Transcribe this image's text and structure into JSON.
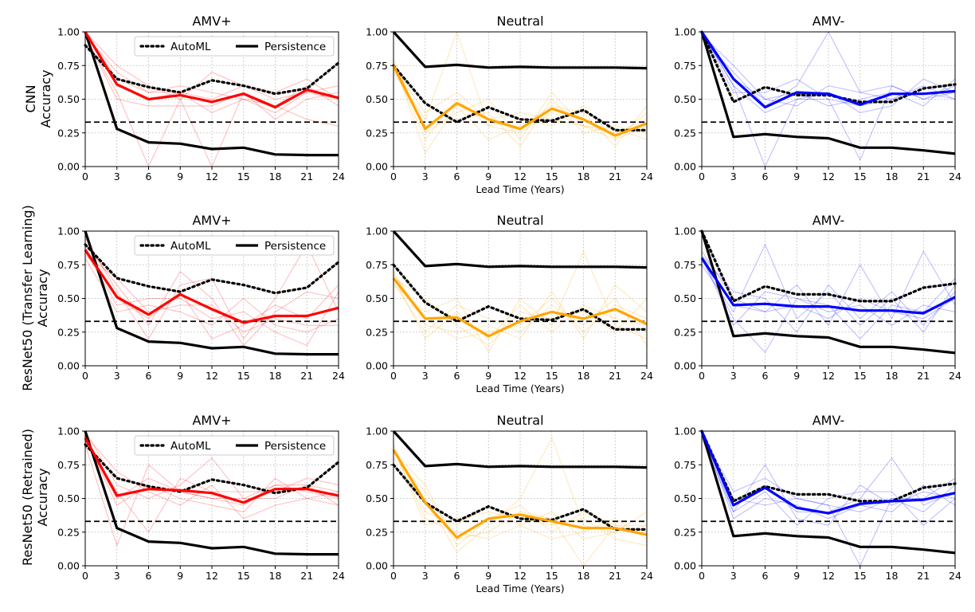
{
  "colors": {
    "amv_plus": "#ff0000",
    "neutral": "#ffa500",
    "amv_minus": "#0000ff",
    "persistence": "#000000",
    "automl": "#000000",
    "baseline": "#000000"
  },
  "legend": {
    "automl": "AutoML",
    "persistence": "Persistence"
  },
  "row_labels": [
    [
      "CNN",
      "Accuracy"
    ],
    [
      "ResNet50 (Transfer Learning)",
      "Accuracy"
    ],
    [
      "ResNet50 (Retrained)",
      "Accuracy"
    ]
  ],
  "xlabel": "Lead Time (Years)",
  "chart_data": {
    "type": "line",
    "x": [
      0,
      3,
      6,
      9,
      12,
      15,
      18,
      21,
      24
    ],
    "xticks": [
      "0",
      "3",
      "6",
      "9",
      "12",
      "15",
      "18",
      "21",
      "24"
    ],
    "yticks": [
      "0.00",
      "0.25",
      "0.50",
      "0.75",
      "1.00"
    ],
    "ylim": [
      0,
      1
    ],
    "xlim": [
      0,
      24
    ],
    "baseline": 0.33,
    "columns": [
      "AMV+",
      "Neutral",
      "AMV-"
    ],
    "persistence": {
      "AMV+": [
        1.0,
        0.28,
        0.18,
        0.17,
        0.13,
        0.14,
        0.09,
        0.085,
        0.085
      ],
      "Neutral": [
        1.0,
        0.74,
        0.755,
        0.735,
        0.74,
        0.735,
        0.735,
        0.735,
        0.73
      ],
      "AMV-": [
        1.0,
        0.22,
        0.24,
        0.22,
        0.21,
        0.14,
        0.14,
        0.12,
        0.095
      ]
    },
    "automl": {
      "AMV+": [
        0.9,
        0.65,
        0.59,
        0.55,
        0.64,
        0.6,
        0.54,
        0.58,
        0.77
      ],
      "Neutral": [
        0.75,
        0.47,
        0.33,
        0.44,
        0.35,
        0.34,
        0.42,
        0.27,
        0.27
      ],
      "AMV-": [
        1.0,
        0.48,
        0.59,
        0.53,
        0.53,
        0.48,
        0.48,
        0.58,
        0.61
      ]
    },
    "panels": [
      {
        "row": "CNN",
        "column": "AMV+",
        "mean": [
          1.0,
          0.61,
          0.5,
          0.53,
          0.48,
          0.54,
          0.44,
          0.57,
          0.51
        ],
        "members": [
          [
            0.98,
            0.7,
            0.55,
            0.55,
            0.5,
            0.6,
            0.5,
            0.55,
            0.5
          ],
          [
            0.96,
            0.55,
            0.0,
            0.5,
            0.0,
            0.55,
            0.45,
            0.6,
            0.45
          ],
          [
            1.0,
            0.65,
            0.55,
            0.6,
            0.55,
            0.5,
            0.4,
            0.55,
            0.6
          ],
          [
            0.97,
            0.5,
            0.45,
            0.45,
            0.45,
            0.55,
            0.35,
            0.5,
            0.55
          ],
          [
            1.0,
            0.75,
            0.6,
            0.5,
            0.7,
            0.6,
            0.55,
            0.65,
            0.5
          ],
          [
            0.99,
            0.6,
            0.5,
            0.55,
            0.4,
            0.5,
            0.45,
            0.35,
            0.3
          ]
        ]
      },
      {
        "row": "CNN",
        "column": "Neutral",
        "mean": [
          0.75,
          0.28,
          0.47,
          0.35,
          0.28,
          0.43,
          0.35,
          0.23,
          0.32
        ],
        "members": [
          [
            0.7,
            0.35,
            1.0,
            0.3,
            0.25,
            0.4,
            0.3,
            0.2,
            0.3
          ],
          [
            0.8,
            0.25,
            0.4,
            0.5,
            0.2,
            0.55,
            0.3,
            0.25,
            0.35
          ],
          [
            0.75,
            0.2,
            0.5,
            0.3,
            0.35,
            0.3,
            0.45,
            0.2,
            0.4
          ],
          [
            0.72,
            0.3,
            0.35,
            0.4,
            0.15,
            0.5,
            0.25,
            0.3,
            0.25
          ],
          [
            0.78,
            0.1,
            0.45,
            0.2,
            0.3,
            0.45,
            0.4,
            0.15,
            0.45
          ],
          [
            0.74,
            0.4,
            0.55,
            0.35,
            0.4,
            0.35,
            0.3,
            0.28,
            0.2
          ]
        ]
      },
      {
        "row": "CNN",
        "column": "AMV-",
        "mean": [
          1.0,
          0.65,
          0.44,
          0.55,
          0.54,
          0.46,
          0.54,
          0.54,
          0.56
        ],
        "members": [
          [
            0.95,
            0.7,
            0.45,
            0.6,
            1.0,
            0.55,
            0.5,
            0.6,
            0.5
          ],
          [
            1.0,
            0.6,
            0.0,
            0.5,
            0.5,
            0.05,
            0.6,
            0.5,
            0.55
          ],
          [
            0.97,
            0.65,
            0.5,
            0.55,
            0.45,
            0.5,
            0.55,
            0.45,
            0.65
          ],
          [
            1.0,
            0.55,
            0.55,
            0.65,
            0.5,
            0.45,
            0.5,
            0.55,
            0.5
          ],
          [
            0.98,
            0.75,
            0.5,
            0.45,
            0.6,
            0.55,
            0.6,
            0.5,
            0.6
          ],
          [
            1.0,
            0.6,
            0.4,
            0.5,
            0.55,
            0.4,
            0.45,
            0.65,
            0.55
          ]
        ]
      },
      {
        "row": "ResNet50 (Transfer Learning)",
        "column": "AMV+",
        "mean": [
          0.86,
          0.51,
          0.38,
          0.53,
          0.42,
          0.32,
          0.37,
          0.37,
          0.43
        ],
        "members": [
          [
            0.9,
            0.6,
            0.3,
            0.7,
            0.5,
            0.15,
            0.4,
            0.55,
            0.5
          ],
          [
            0.8,
            0.4,
            0.45,
            0.4,
            0.3,
            0.5,
            0.3,
            0.25,
            0.35
          ],
          [
            0.95,
            0.55,
            0.2,
            0.6,
            0.65,
            0.2,
            0.5,
            0.9,
            0.4
          ],
          [
            0.85,
            0.45,
            0.5,
            0.5,
            0.35,
            0.4,
            0.25,
            0.15,
            0.55
          ],
          [
            0.88,
            0.5,
            0.35,
            0.55,
            0.2,
            0.3,
            0.45,
            0.35,
            0.6
          ],
          [
            0.82,
            0.65,
            0.4,
            0.45,
            0.45,
            0.25,
            0.35,
            0.3,
            0.3
          ]
        ]
      },
      {
        "row": "ResNet50 (Transfer Learning)",
        "column": "Neutral",
        "mean": [
          0.65,
          0.35,
          0.36,
          0.22,
          0.33,
          0.4,
          0.35,
          0.42,
          0.31
        ],
        "members": [
          [
            0.6,
            0.4,
            0.5,
            0.1,
            0.5,
            0.3,
            0.85,
            0.3,
            0.2
          ],
          [
            0.7,
            0.3,
            0.25,
            0.3,
            0.2,
            0.55,
            0.2,
            0.6,
            0.4
          ],
          [
            0.65,
            0.5,
            0.3,
            0.15,
            0.4,
            0.35,
            0.4,
            0.25,
            0.5
          ],
          [
            0.62,
            0.25,
            0.45,
            0.35,
            0.25,
            0.45,
            0.3,
            0.5,
            0.15
          ],
          [
            0.68,
            0.35,
            0.2,
            0.25,
            0.3,
            0.5,
            0.25,
            0.45,
            0.35
          ],
          [
            0.66,
            0.2,
            0.4,
            0.2,
            0.45,
            0.25,
            0.45,
            0.35,
            0.3
          ]
        ]
      },
      {
        "row": "ResNet50 (Transfer Learning)",
        "column": "AMV-",
        "mean": [
          0.8,
          0.45,
          0.46,
          0.44,
          0.44,
          0.41,
          0.41,
          0.39,
          0.51
        ],
        "members": [
          [
            0.85,
            0.5,
            0.4,
            0.6,
            0.3,
            0.75,
            0.35,
            0.85,
            0.45
          ],
          [
            0.75,
            0.4,
            0.9,
            0.35,
            0.55,
            0.3,
            0.5,
            0.25,
            0.6
          ],
          [
            0.8,
            0.35,
            0.1,
            0.5,
            0.4,
            0.45,
            0.3,
            0.45,
            0.4
          ],
          [
            0.82,
            0.55,
            0.5,
            0.25,
            0.6,
            0.35,
            0.55,
            0.3,
            0.55
          ],
          [
            0.78,
            0.45,
            0.4,
            0.45,
            0.35,
            0.5,
            0.4,
            0.35,
            0.5
          ],
          [
            0.8,
            0.3,
            0.55,
            0.5,
            0.45,
            0.2,
            0.45,
            0.4,
            0.65
          ]
        ]
      },
      {
        "row": "ResNet50 (Retrained)",
        "column": "AMV+",
        "mean": [
          0.95,
          0.52,
          0.57,
          0.56,
          0.54,
          0.47,
          0.57,
          0.57,
          0.52
        ],
        "members": [
          [
            0.9,
            0.15,
            0.75,
            0.55,
            0.5,
            0.45,
            0.6,
            0.55,
            0.5
          ],
          [
            1.0,
            0.6,
            0.5,
            0.6,
            0.8,
            0.5,
            0.5,
            0.6,
            0.45
          ],
          [
            0.95,
            0.45,
            0.6,
            0.5,
            0.45,
            0.4,
            0.65,
            0.5,
            0.55
          ],
          [
            0.92,
            0.55,
            0.25,
            0.65,
            0.55,
            0.55,
            0.55,
            0.65,
            0.6
          ],
          [
            0.97,
            0.7,
            0.55,
            0.45,
            0.6,
            0.35,
            0.45,
            0.5,
            0.45
          ],
          [
            0.93,
            0.5,
            0.65,
            0.55,
            0.5,
            0.5,
            0.6,
            0.6,
            0.55
          ]
        ]
      },
      {
        "row": "ResNet50 (Retrained)",
        "column": "Neutral",
        "mean": [
          0.86,
          0.47,
          0.21,
          0.35,
          0.38,
          0.33,
          0.28,
          0.28,
          0.23
        ],
        "members": [
          [
            0.85,
            0.5,
            0.1,
            0.3,
            0.5,
            0.95,
            0.3,
            0.25,
            0.3
          ],
          [
            0.9,
            0.4,
            0.3,
            0.45,
            0.3,
            0.2,
            0.25,
            0.35,
            0.2
          ],
          [
            0.8,
            0.55,
            0.2,
            0.25,
            0.4,
            0.35,
            0.0,
            0.3,
            0.25
          ],
          [
            0.88,
            0.3,
            0.35,
            0.4,
            0.35,
            0.3,
            0.35,
            0.2,
            0.15
          ],
          [
            0.84,
            0.6,
            0.15,
            0.35,
            0.45,
            0.25,
            0.4,
            0.3,
            0.3
          ],
          [
            0.87,
            0.35,
            0.25,
            0.2,
            0.3,
            0.4,
            0.2,
            0.25,
            0.4
          ]
        ]
      },
      {
        "row": "ResNet50 (Retrained)",
        "column": "AMV-",
        "mean": [
          1.0,
          0.45,
          0.58,
          0.43,
          0.39,
          0.46,
          0.48,
          0.49,
          0.54
        ],
        "members": [
          [
            0.95,
            0.4,
            0.75,
            0.35,
            0.3,
            0.6,
            0.45,
            0.55,
            0.5
          ],
          [
            1.0,
            0.5,
            0.45,
            0.5,
            0.45,
            0.0,
            0.5,
            0.4,
            0.6
          ],
          [
            0.97,
            0.45,
            0.6,
            0.4,
            0.4,
            0.5,
            0.8,
            0.45,
            0.55
          ],
          [
            1.0,
            0.35,
            0.5,
            0.45,
            0.35,
            0.45,
            0.4,
            0.6,
            0.45
          ],
          [
            0.98,
            0.55,
            0.65,
            0.5,
            0.45,
            0.4,
            0.5,
            0.5,
            0.65
          ],
          [
            1.0,
            0.4,
            0.55,
            0.3,
            0.5,
            0.55,
            0.55,
            0.3,
            0.5
          ]
        ]
      }
    ]
  }
}
